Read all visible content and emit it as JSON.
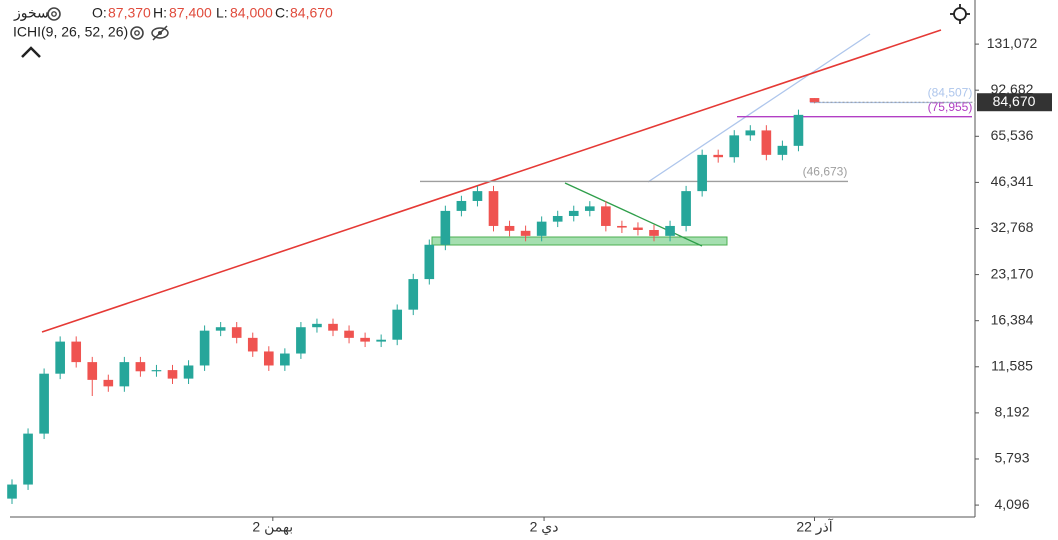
{
  "chart_data": {
    "type": "candlestick",
    "symbol": "سخوز",
    "ohlc": [
      {
        "label": "O:",
        "value": "87,370"
      },
      {
        "label": "H:",
        "value": "87,400"
      },
      {
        "label": "L:",
        "value": "84,000"
      },
      {
        "label": "C:",
        "value": "84,670"
      }
    ],
    "indicator": "ICHI(9, 26, 52, 26)",
    "log_scale": true,
    "grid": false,
    "up_color": "#26a69a",
    "down_color": "#ef5350",
    "x": [
      0,
      2,
      4,
      6,
      8,
      10,
      12,
      14,
      16,
      18,
      20,
      22,
      24,
      26,
      28,
      30,
      32,
      34,
      36,
      38,
      40,
      42,
      44,
      46,
      48,
      50,
      52,
      54,
      56,
      58,
      60,
      62,
      64,
      66,
      68,
      70,
      72,
      74,
      76,
      78,
      80,
      82,
      84,
      86,
      88,
      90,
      92,
      94,
      96,
      98,
      100
    ],
    "open": [
      4300,
      4780,
      7010,
      11000,
      14000,
      12000,
      10500,
      10000,
      12000,
      11200,
      11300,
      10600,
      11700,
      15200,
      15600,
      14400,
      13000,
      11700,
      12800,
      15600,
      16000,
      15200,
      14400,
      14000,
      14200,
      17800,
      22400,
      29000,
      37400,
      40300,
      43400,
      33400,
      32200,
      31000,
      34500,
      36000,
      37400,
      38700,
      33400,
      33000,
      32400,
      31000,
      33400,
      43400,
      57000,
      56000,
      66000,
      68500,
      57000,
      61000,
      87370
    ],
    "high": [
      4970,
      7290,
      11440,
      14560,
      14560,
      12480,
      10920,
      12480,
      12480,
      11750,
      11750,
      12170,
      15810,
      16220,
      16220,
      14980,
      13520,
      13310,
      16220,
      16640,
      16640,
      15810,
      14980,
      14770,
      18510,
      23300,
      30160,
      38900,
      41910,
      45140,
      45140,
      34740,
      33490,
      35880,
      37440,
      38900,
      40250,
      40250,
      34740,
      34320,
      33700,
      34740,
      45140,
      59280,
      59280,
      68640,
      71240,
      71240,
      63440,
      80080,
      87400
    ],
    "low": [
      4130,
      4590,
      6730,
      10560,
      11520,
      9300,
      9600,
      9600,
      10750,
      10750,
      10180,
      10180,
      11230,
      14590,
      13820,
      12480,
      11230,
      11230,
      12290,
      14980,
      14590,
      13820,
      13440,
      13440,
      13630,
      17090,
      21500,
      27840,
      35900,
      38690,
      32060,
      30910,
      29760,
      29760,
      33120,
      34560,
      35900,
      32060,
      31680,
      31100,
      29760,
      29760,
      32060,
      41660,
      53760,
      53760,
      63360,
      54720,
      54720,
      58560,
      84000
    ],
    "close": [
      4780,
      7010,
      11000,
      14000,
      12000,
      10500,
      10000,
      12000,
      11200,
      11300,
      10600,
      11700,
      15200,
      15600,
      14400,
      13000,
      11700,
      12800,
      15600,
      16000,
      15200,
      14400,
      14000,
      14200,
      17800,
      22400,
      29000,
      37400,
      40300,
      43400,
      33400,
      32200,
      31000,
      34500,
      36000,
      37400,
      38700,
      33400,
      33000,
      32400,
      31000,
      33400,
      43400,
      57000,
      56000,
      66000,
      68500,
      57000,
      61000,
      77000,
      84670
    ],
    "last_label": "84,670",
    "xlim": [
      -0.25,
      120
    ],
    "xticks": [
      {
        "value": 32.5,
        "label": "2 بهمن"
      },
      {
        "value": 66.3,
        "label": "2 دي"
      },
      {
        "value": 100,
        "label": "22 آذر"
      }
    ],
    "ylim": [
      3745,
      182600
    ],
    "yticks": [
      {
        "value": 4096,
        "label": "4,096"
      },
      {
        "value": 5793,
        "label": "5,793"
      },
      {
        "value": 8192,
        "label": "8,192"
      },
      {
        "value": 11585,
        "label": "11,585"
      },
      {
        "value": 16384,
        "label": "16,384"
      },
      {
        "value": 23170,
        "label": "23,170"
      },
      {
        "value": 32768,
        "label": "32,768"
      },
      {
        "value": 46341,
        "label": "46,341"
      },
      {
        "value": 65536,
        "label": "65,536"
      },
      {
        "value": 92682,
        "label": "92,682"
      },
      {
        "value": 131072,
        "label": "131,072"
      }
    ],
    "levels": [
      {
        "value": 84507,
        "label": "(84,507)",
        "color": "#aec6ec"
      },
      {
        "value": 75955,
        "label": "(75,955)",
        "color": "#b23fc4"
      },
      {
        "value": 46673,
        "label": "(46,673)",
        "color": "#9e9e9e"
      }
    ]
  }
}
